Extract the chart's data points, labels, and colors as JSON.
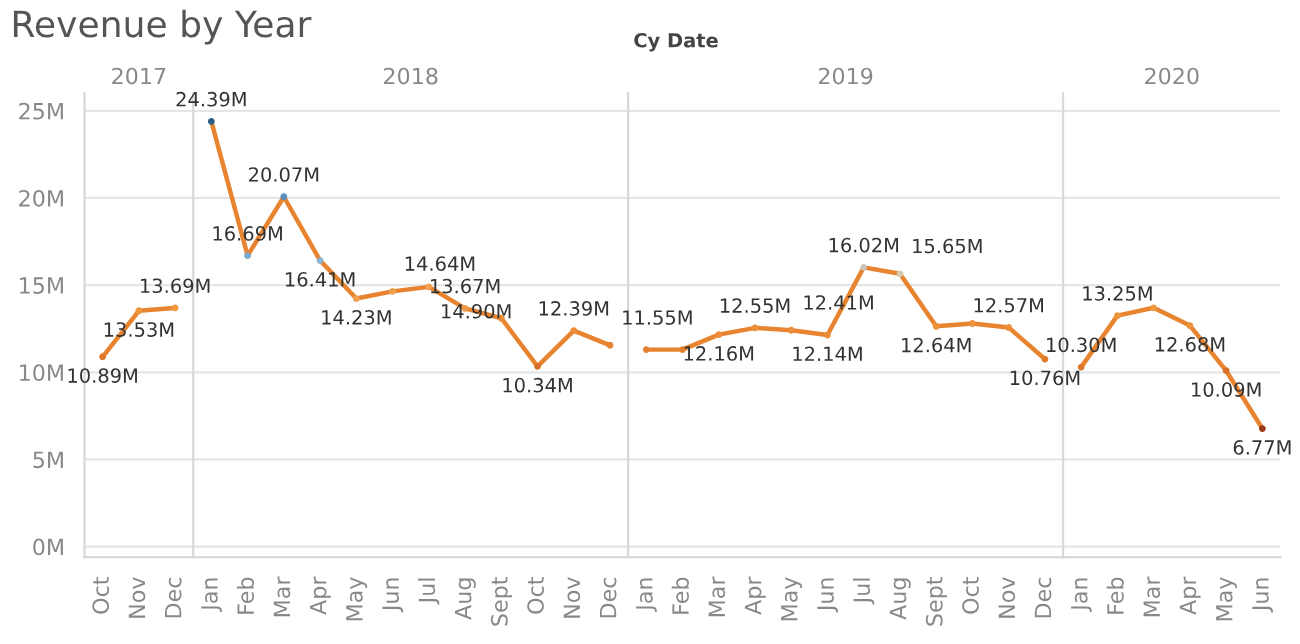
{
  "chart_data": [
    {
      "type": "line",
      "title": "Revenue by Year",
      "subtitle": "2017",
      "annotations": [
        "Cy Date"
      ],
      "categories": [
        "Oct",
        "Nov",
        "Dec"
      ],
      "series": [
        {
          "color": "#e8842f",
          "colors": [
            "#e0782a",
            "#f0963c",
            "#f0983e"
          ],
          "values": [
            10.89,
            13.53,
            13.69
          ],
          "value_labels": [
            "10.89M",
            "13.53M",
            "13.69M"
          ]
        }
      ],
      "ylim": [
        -0.6,
        26
      ],
      "yticks": [
        {
          "value": 0,
          "label": "0M"
        },
        {
          "value": 5,
          "label": "5M"
        },
        {
          "value": 10,
          "label": "10M"
        },
        {
          "value": 15,
          "label": "15M"
        },
        {
          "value": 20,
          "label": "20M"
        },
        {
          "value": 25,
          "label": "25M"
        }
      ],
      "grid": "y",
      "marker": "circle"
    },
    {
      "type": "line",
      "subtitle": "2018",
      "categories": [
        "Jan",
        "Feb",
        "Mar",
        "Apr",
        "May",
        "Jun",
        "Jul",
        "Aug",
        "Sept",
        "Oct",
        "Nov",
        "Dec"
      ],
      "series": [
        {
          "color": "#e8842f",
          "colors": [
            "#2c5f8a",
            "#7ba7c9",
            "#5a8fbb",
            "#8cb3cf",
            "#f0a050",
            "#f0a050",
            "#f0a050",
            "#ee9a45",
            "#e88a38",
            "#d8702a",
            "#eb8d3a",
            "#e48232"
          ],
          "values": [
            24.39,
            16.69,
            20.07,
            16.41,
            14.23,
            14.64,
            14.9,
            13.67,
            13.1,
            10.34,
            12.39,
            11.55
          ],
          "value_labels": [
            "24.39M",
            "16.69M",
            "20.07M",
            "16.41M",
            "14.23M",
            "14.64M",
            "14.90M",
            "13.67M",
            null,
            "10.34M",
            "12.39M",
            "11.55M"
          ]
        }
      ],
      "ylim": [
        -0.6,
        26
      ],
      "yticks": [
        {
          "value": 0,
          "label": null
        },
        {
          "value": 5,
          "label": null
        },
        {
          "value": 10,
          "label": null
        },
        {
          "value": 15,
          "label": null
        },
        {
          "value": 20,
          "label": null
        },
        {
          "value": 25,
          "label": null
        }
      ],
      "grid": "y",
      "marker": "circle",
      "tick_labels": "x"
    },
    {
      "type": "line",
      "subtitle": "2019",
      "categories": [
        "Jan",
        "Feb",
        "Mar",
        "Apr",
        "May",
        "Jun",
        "Jul",
        "Aug",
        "Sept",
        "Oct",
        "Nov",
        "Dec"
      ],
      "series": [
        {
          "color": "#e8842f",
          "colors": [
            "#e48232",
            "#e48232",
            "#eb8d3a",
            "#ec903c",
            "#eb8e3b",
            "#eb8c3a",
            "#c8c4bc",
            "#d8c8b0",
            "#ec903c",
            "#ed923d",
            "#ec903c",
            "#e07b2c"
          ],
          "values": [
            11.3,
            11.3,
            12.16,
            12.55,
            12.41,
            12.14,
            16.02,
            15.65,
            12.64,
            12.8,
            12.57,
            10.76
          ],
          "value_labels": [
            null,
            null,
            "12.16M",
            "12.55M",
            "12.41M",
            "12.14M",
            "16.02M",
            "15.65M",
            "12.64M",
            null,
            "12.57M",
            "10.76M"
          ]
        }
      ],
      "ylim": [
        -0.6,
        26
      ],
      "yticks": [
        {
          "value": 0,
          "label": null
        },
        {
          "value": 5,
          "label": null
        },
        {
          "value": 10,
          "label": null
        },
        {
          "value": 15,
          "label": null
        },
        {
          "value": 20,
          "label": null
        },
        {
          "value": 25,
          "label": null
        }
      ],
      "grid": "y",
      "marker": "circle",
      "tick_labels": "x"
    },
    {
      "type": "line",
      "subtitle": "2020",
      "categories": [
        "Jan",
        "Feb",
        "Mar",
        "Apr",
        "May",
        "Jun"
      ],
      "series": [
        {
          "color": "#e8842f",
          "colors": [
            "#dd782b",
            "#ef963e",
            "#f09a40",
            "#ec903c",
            "#d8702a",
            "#9a3a1a"
          ],
          "values": [
            10.3,
            13.25,
            13.7,
            12.68,
            10.09,
            6.77
          ],
          "value_labels": [
            "10.30M",
            "13.25M",
            null,
            "12.68M",
            "10.09M",
            "6.77M"
          ]
        }
      ],
      "ylim": [
        -0.6,
        26
      ],
      "yticks": [
        {
          "value": 0,
          "label": null
        },
        {
          "value": 5,
          "label": null
        },
        {
          "value": 10,
          "label": null
        },
        {
          "value": 15,
          "label": null
        },
        {
          "value": 20,
          "label": null
        },
        {
          "value": 25,
          "label": null
        }
      ],
      "grid": "y",
      "marker": "circle",
      "tick_labels": "x"
    }
  ]
}
